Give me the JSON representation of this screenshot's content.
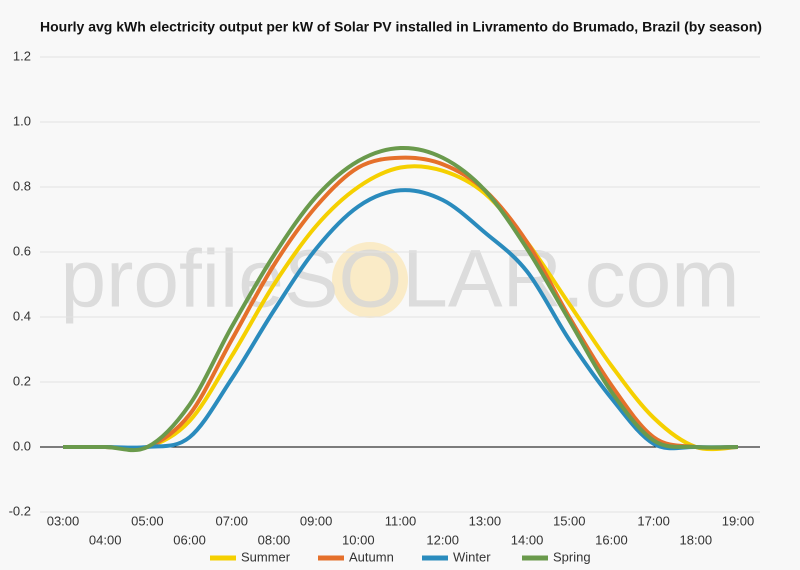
{
  "chart_data": {
    "type": "line",
    "title": "Hourly avg kWh electricity output per kW of Solar PV installed in Livramento do Brumado, Brazil (by season)",
    "watermark": "profileSOLAR.com",
    "categories": [
      "03:00",
      "04:00",
      "05:00",
      "06:00",
      "07:00",
      "08:00",
      "09:00",
      "10:00",
      "11:00",
      "12:00",
      "13:00",
      "14:00",
      "15:00",
      "16:00",
      "17:00",
      "18:00",
      "19:00"
    ],
    "series": [
      {
        "name": "Summer",
        "color": "#f5d000",
        "values": [
          0,
          0,
          0,
          0.08,
          0.28,
          0.5,
          0.68,
          0.8,
          0.86,
          0.85,
          0.78,
          0.63,
          0.44,
          0.25,
          0.09,
          0,
          0
        ]
      },
      {
        "name": "Autumn",
        "color": "#e5702b",
        "values": [
          0,
          0,
          0,
          0.1,
          0.33,
          0.56,
          0.74,
          0.86,
          0.89,
          0.87,
          0.79,
          0.63,
          0.4,
          0.19,
          0.03,
          0,
          0
        ]
      },
      {
        "name": "Winter",
        "color": "#2a8bbd",
        "values": [
          0,
          0,
          0,
          0.03,
          0.21,
          0.42,
          0.61,
          0.74,
          0.79,
          0.76,
          0.66,
          0.54,
          0.33,
          0.15,
          0.01,
          0,
          0
        ]
      },
      {
        "name": "Spring",
        "color": "#6a9a4c",
        "values": [
          0,
          0,
          0,
          0.13,
          0.37,
          0.59,
          0.77,
          0.88,
          0.92,
          0.89,
          0.79,
          0.61,
          0.39,
          0.17,
          0.02,
          0,
          0
        ]
      }
    ],
    "ylim": [
      -0.2,
      1.2
    ],
    "yticks": [
      -0.2,
      {
        "value": 0,
        "label": "0.0"
      },
      0.2,
      0.4,
      0.6,
      0.8,
      {
        "value": 1,
        "label": "1.0"
      },
      1.2
    ],
    "grid": true,
    "legend": "bottom"
  }
}
